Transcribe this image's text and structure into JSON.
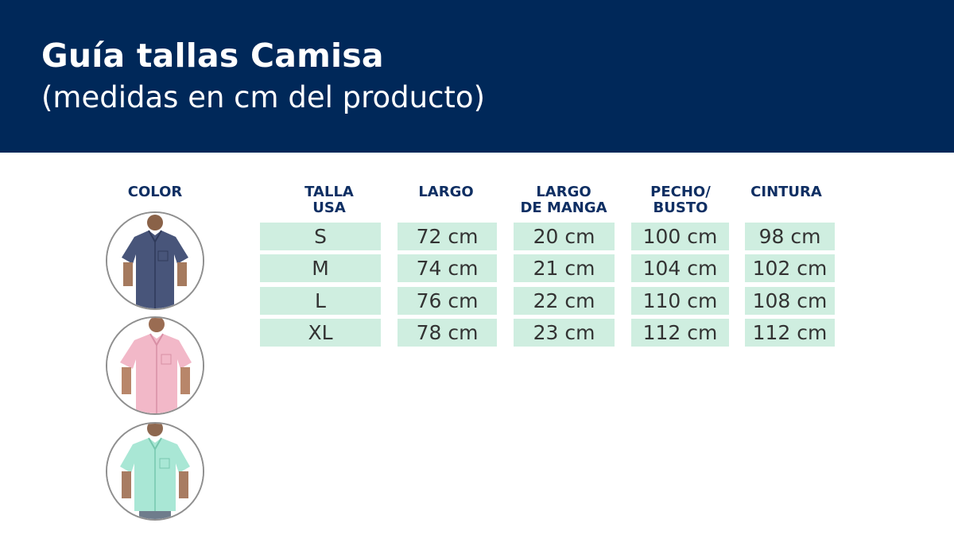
{
  "header": {
    "title": "Guía tallas Camisa",
    "subtitle": "(medidas en cm del producto)",
    "background": "#002859"
  },
  "color_column": {
    "label": "COLOR",
    "swatches": [
      {
        "icon": "shirt-navy-photo",
        "color": "#48557a"
      },
      {
        "icon": "shirt-pink-photo",
        "color": "#f2b8c8"
      },
      {
        "icon": "shirt-mint-photo",
        "color": "#a9e7d5"
      }
    ]
  },
  "table": {
    "headers": [
      "TALLA\nUSA",
      "LARGO",
      "LARGO\nDE MANGA",
      "PECHO/\nBUSTO",
      "CINTURA"
    ],
    "rows": [
      [
        "S",
        "72 cm",
        "20  cm",
        "100 cm",
        "98 cm"
      ],
      [
        "M",
        "74 cm",
        "21 cm",
        "104 cm",
        "102 cm"
      ],
      [
        "L",
        "76 cm",
        "22 cm",
        "110 cm",
        "108 cm"
      ],
      [
        "XL",
        "78 cm",
        "23 cm",
        "112 cm",
        "112 cm"
      ]
    ],
    "cell_color": "#cfeee0"
  }
}
